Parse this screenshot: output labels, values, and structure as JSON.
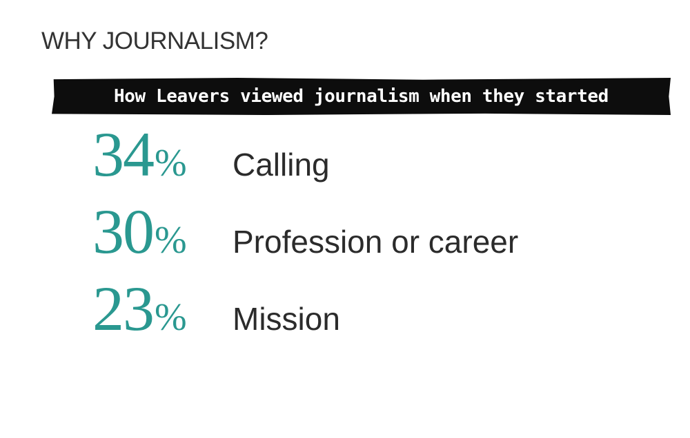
{
  "header": {
    "title": "WHY JOURNALISM?"
  },
  "banner": {
    "text": "How Leavers viewed journalism when they started"
  },
  "colors": {
    "accent": "#2a9890",
    "text": "#2b2b2b",
    "banner_bg": "#0d0d0d",
    "banner_text": "#ffffff"
  },
  "chart_data": {
    "type": "table",
    "title": "How Leavers viewed journalism when they started",
    "unit": "%",
    "categories": [
      "Calling",
      "Profession or career",
      "Mission"
    ],
    "values": [
      34,
      30,
      23
    ]
  }
}
